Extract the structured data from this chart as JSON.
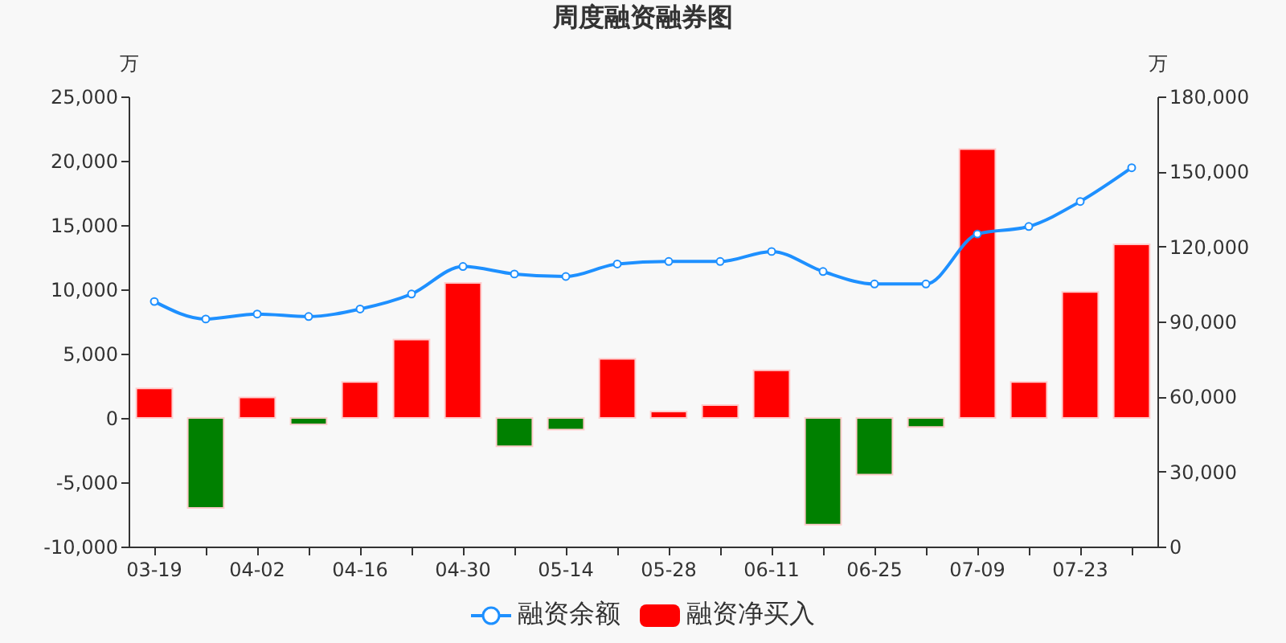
{
  "chart_data": {
    "type": "bar",
    "title": "周度融资融券图",
    "ylabel": "万",
    "y2label": "万",
    "categories": [
      "03-19",
      null,
      "04-02",
      null,
      "04-16",
      null,
      "04-30",
      null,
      "05-14",
      null,
      "05-28",
      null,
      "06-11",
      null,
      "06-25",
      null,
      "07-09",
      null,
      "07-23",
      null
    ],
    "series": [
      {
        "name": "融资余额",
        "type": "line",
        "axis": "y2",
        "color": "#1e90ff",
        "values": [
          98000,
          91000,
          93000,
          92000,
          95000,
          101000,
          112000,
          109000,
          108000,
          113000,
          114000,
          114000,
          118000,
          110000,
          105000,
          105000,
          125000,
          128000,
          138000,
          151500
        ]
      },
      {
        "name": "融资净买入",
        "color": "#ff0000",
        "colors": [
          "#ff0000",
          "#008000",
          "#ff0000",
          "#008000",
          "#ff0000",
          "#ff0000",
          "#ff0000",
          "#008000",
          "#008000",
          "#ff0000",
          "#ff0000",
          "#ff0000",
          "#ff0000",
          "#008000",
          "#008000",
          "#008000",
          "#ff0000",
          "#ff0000",
          "#ff0000",
          "#ff0000"
        ],
        "values": [
          2300,
          -7000,
          1600,
          -500,
          2800,
          6100,
          10500,
          -2200,
          -900,
          4600,
          500,
          1000,
          3700,
          -8300,
          -4400,
          -700,
          20900,
          2800,
          9800,
          13500
        ]
      }
    ],
    "ylim": [
      -10000,
      25000
    ],
    "yticks": [
      {
        "value": -10000,
        "label": "-10,000"
      },
      {
        "value": -5000,
        "label": "-5,000"
      },
      0,
      {
        "value": 5000,
        "label": "5,000"
      },
      {
        "value": 10000,
        "label": "10,000"
      },
      {
        "value": 15000,
        "label": "15,000"
      },
      {
        "value": 20000,
        "label": "20,000"
      },
      {
        "value": 25000,
        "label": "25,000"
      }
    ],
    "y2lim": [
      0,
      180000
    ],
    "y2ticks": [
      0,
      {
        "value": 30000,
        "label": "30,000"
      },
      {
        "value": 60000,
        "label": "60,000"
      },
      {
        "value": 90000,
        "label": "90,000"
      },
      {
        "value": 120000,
        "label": "120,000"
      },
      {
        "value": 150000,
        "label": "150,000"
      },
      {
        "value": 180000,
        "label": "180,000"
      }
    ],
    "grid": false,
    "legend": "bottom",
    "marker": "circle"
  }
}
